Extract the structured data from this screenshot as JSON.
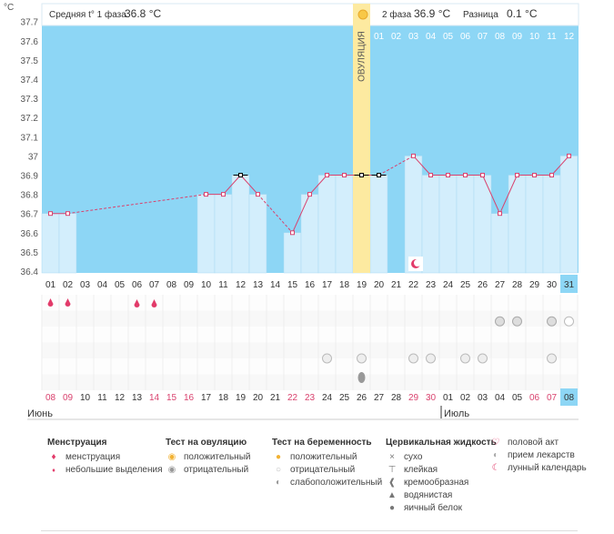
{
  "unit": "°C",
  "header": {
    "phase1_label": "Средняя t° 1 фаза",
    "phase1_value": "36.8 °C",
    "phase2_label": "2 фаза",
    "phase2_value": "36.9 °C",
    "diff_label": "Разница",
    "diff_value": "0.1 °C"
  },
  "ovulation_label": "ОВУЛЯЦИЯ",
  "y_ticks": [
    "37.7",
    "37.6",
    "37.5",
    "37.4",
    "37.3",
    "37.2",
    "37.1",
    "37",
    "36.9",
    "36.8",
    "36.7",
    "36.6",
    "36.5",
    "36.4"
  ],
  "phase2_days": [
    "01",
    "02",
    "03",
    "04",
    "05",
    "06",
    "07",
    "08",
    "09",
    "10",
    "11",
    "12"
  ],
  "cycle_days": [
    "01",
    "02",
    "03",
    "04",
    "05",
    "06",
    "07",
    "08",
    "09",
    "10",
    "11",
    "12",
    "13",
    "14",
    "15",
    "16",
    "17",
    "18",
    "19",
    "20",
    "21",
    "22",
    "23",
    "24",
    "25",
    "26",
    "27",
    "28",
    "29",
    "30",
    "31"
  ],
  "dates": [
    "08",
    "09",
    "10",
    "11",
    "12",
    "13",
    "14",
    "15",
    "16",
    "17",
    "18",
    "19",
    "20",
    "21",
    "22",
    "23",
    "24",
    "25",
    "26",
    "27",
    "28",
    "29",
    "30",
    "01",
    "02",
    "03",
    "04",
    "05",
    "06",
    "07",
    "08"
  ],
  "months": {
    "first": "Июнь",
    "second": "Июль"
  },
  "chart_data": {
    "type": "line",
    "ylabel": "°C",
    "ylim": [
      36.4,
      37.8
    ],
    "x": [
      1,
      2,
      3,
      4,
      5,
      6,
      7,
      8,
      9,
      10,
      11,
      12,
      13,
      14,
      15,
      16,
      17,
      18,
      19,
      20,
      21,
      22,
      23,
      24,
      25,
      26,
      27,
      28,
      29,
      30,
      31
    ],
    "values": [
      36.7,
      36.7,
      null,
      null,
      null,
      null,
      null,
      null,
      null,
      36.8,
      36.8,
      36.9,
      36.8,
      null,
      36.6,
      36.8,
      36.9,
      36.9,
      36.9,
      36.9,
      null,
      37.0,
      36.9,
      36.9,
      36.9,
      36.9,
      36.7,
      36.9,
      36.9,
      36.9,
      37.0
    ],
    "ovulation_day": 19,
    "current_day": 31
  },
  "legend": {
    "menstruation": {
      "title": "Менструация",
      "items": [
        "менструация",
        "небольшие выделения"
      ]
    },
    "ovulation_test": {
      "title": "Тест на овуляцию",
      "items": [
        "положительный",
        "отрицательный"
      ]
    },
    "pregnancy_test": {
      "title": "Тест на беременность",
      "items": [
        "положительный",
        "отрицательный",
        "слабоположительный"
      ]
    },
    "cervical_fluid": {
      "title": "Цервикальная жидкость",
      "items": [
        "сухо",
        "клейкая",
        "кремообразная",
        "водянистая",
        "яичный белок"
      ]
    },
    "other": {
      "items": [
        "половой акт",
        "прием лекарств",
        "лунный календарь"
      ]
    }
  },
  "colors": {
    "sky": "#8dd6f5",
    "bar": "#d3eefc",
    "ovulation": "#fdeaa0",
    "line": "#d9426e",
    "today": "#8dd6f5",
    "red_date": "#d9426e"
  }
}
